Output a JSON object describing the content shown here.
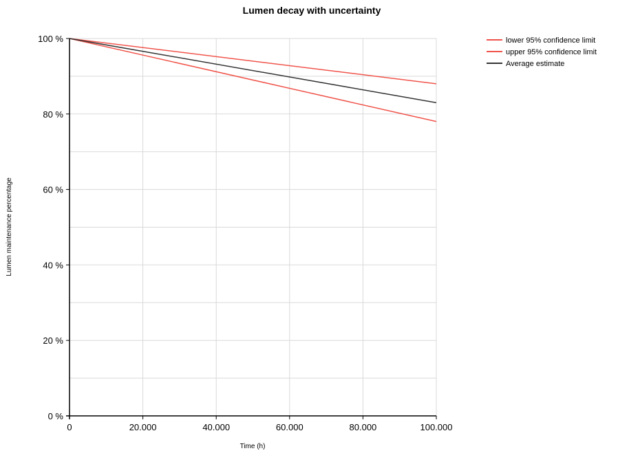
{
  "chart_data": {
    "type": "line",
    "title": "Lumen decay with uncertainty",
    "xlabel": "Time (h)",
    "ylabel": "Lumen maintenance percentage",
    "xlim": [
      0,
      100000
    ],
    "ylim": [
      0,
      100
    ],
    "x_ticks": [
      0,
      20000,
      40000,
      60000,
      80000,
      100000
    ],
    "x_tick_labels": [
      "0",
      "20.000",
      "40.000",
      "60.000",
      "80.000",
      "100.000"
    ],
    "y_ticks": [
      0,
      20,
      40,
      60,
      80,
      100
    ],
    "y_tick_labels": [
      "0 %",
      "20 %",
      "40 %",
      "60 %",
      "80 %",
      "100 %"
    ],
    "y_minor_gridlines": [
      10,
      30,
      50,
      70,
      90
    ],
    "grid": true,
    "legend_position": "top-right",
    "series": [
      {
        "name": "lower 95% confidence limit",
        "color": "#f0534a",
        "x": [
          0,
          100000
        ],
        "y": [
          100,
          78
        ]
      },
      {
        "name": "upper 95% confidence limit",
        "color": "#f0534a",
        "x": [
          0,
          100000
        ],
        "y": [
          100,
          88
        ]
      },
      {
        "name": "Average estimate",
        "color": "#333333",
        "x": [
          0,
          100000
        ],
        "y": [
          100,
          83
        ]
      }
    ]
  }
}
